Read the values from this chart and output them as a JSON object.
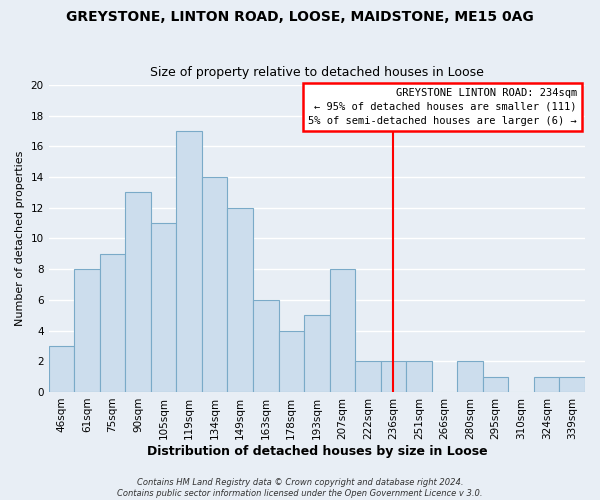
{
  "title": "GREYSTONE, LINTON ROAD, LOOSE, MAIDSTONE, ME15 0AG",
  "subtitle": "Size of property relative to detached houses in Loose",
  "xlabel": "Distribution of detached houses by size in Loose",
  "ylabel": "Number of detached properties",
  "bin_labels": [
    "46sqm",
    "61sqm",
    "75sqm",
    "90sqm",
    "105sqm",
    "119sqm",
    "134sqm",
    "149sqm",
    "163sqm",
    "178sqm",
    "193sqm",
    "207sqm",
    "222sqm",
    "236sqm",
    "251sqm",
    "266sqm",
    "280sqm",
    "295sqm",
    "310sqm",
    "324sqm",
    "339sqm"
  ],
  "bar_heights": [
    3,
    8,
    9,
    13,
    11,
    17,
    14,
    12,
    6,
    4,
    5,
    8,
    2,
    2,
    2,
    0,
    2,
    1,
    0,
    1,
    1
  ],
  "bar_color": "#ccdded",
  "bar_edge_color": "#7aaac8",
  "vline_x_index": 13,
  "vline_color": "red",
  "annotation_line1": "GREYSTONE LINTON ROAD: 234sqm",
  "annotation_line2": "← 95% of detached houses are smaller (111)",
  "annotation_line3": "5% of semi-detached houses are larger (6) →",
  "annotation_box_color": "white",
  "annotation_box_edge_color": "red",
  "ylim": [
    0,
    20
  ],
  "yticks": [
    0,
    2,
    4,
    6,
    8,
    10,
    12,
    14,
    16,
    18,
    20
  ],
  "footer_line1": "Contains HM Land Registry data © Crown copyright and database right 2024.",
  "footer_line2": "Contains public sector information licensed under the Open Government Licence v 3.0.",
  "background_color": "#e8eef5",
  "grid_color": "#ffffff",
  "title_fontsize": 10,
  "subtitle_fontsize": 9,
  "ylabel_fontsize": 8,
  "xlabel_fontsize": 9,
  "tick_fontsize": 7.5,
  "footer_fontsize": 6
}
